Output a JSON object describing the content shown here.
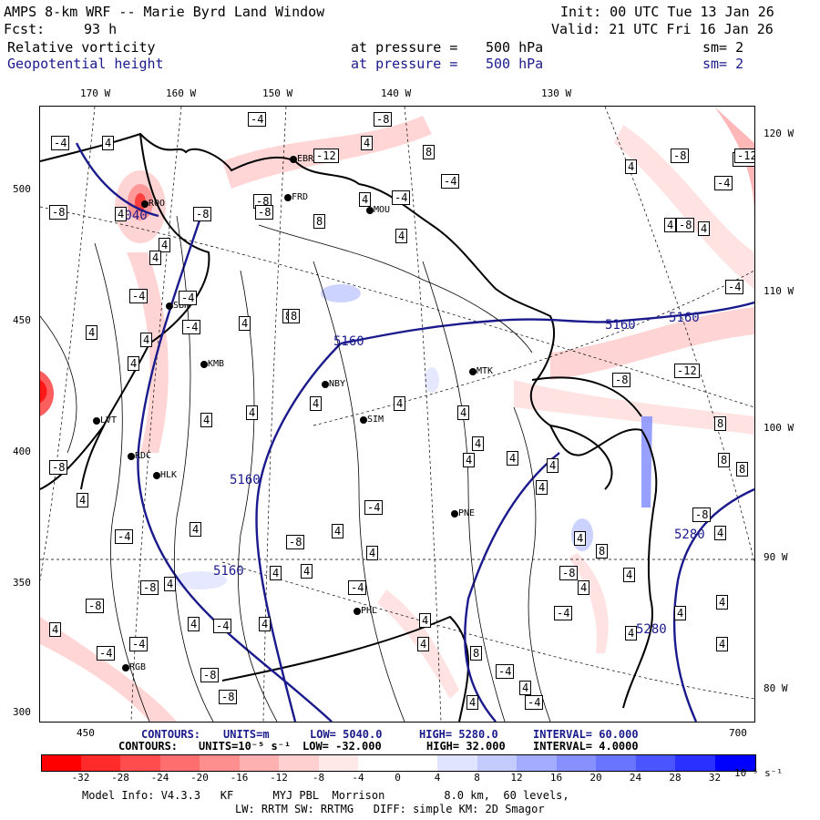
{
  "header": {
    "title": "AMPS 8-km WRF -- Marie Byrd Land Window",
    "fcst_label": "Fcst:",
    "fcst_value": "93 h",
    "init": "Init: 00 UTC Tue 13 Jan 26",
    "valid": "Valid: 21 UTC Fri 16 Jan 26",
    "field1": {
      "name": "Relative vorticity",
      "pressure_label": "at pressure =",
      "pressure": "500 hPa",
      "smooth": "sm= 2"
    },
    "field2": {
      "name": "Geopotential height",
      "pressure_label": "at pressure =",
      "pressure": "500 hPa",
      "smooth": "sm= 2"
    }
  },
  "map": {
    "top_longitudes": [
      "170 W",
      "160 W",
      "150 W",
      "140 W",
      "130 W"
    ],
    "right_longitudes": [
      "120 W",
      "110 W",
      "100 W",
      "90 W",
      "80 W"
    ],
    "left_ticks": [
      "500",
      "450",
      "400",
      "350",
      "300"
    ],
    "bottom_ticks": [
      "450",
      "700"
    ],
    "height_labels": [
      "5040",
      "5160",
      "5160",
      "5160",
      "5160",
      "5160",
      "5280",
      "5280"
    ],
    "vorticity_labels": [
      "-4",
      "4",
      "-4",
      "-8",
      "8",
      "4",
      "-8",
      "-12",
      "4",
      "-4",
      "-8",
      "-12",
      "-8",
      "4",
      "-8",
      "4",
      "8",
      "4",
      "-4",
      "-8",
      "4",
      "4",
      "-8",
      "4",
      "-4",
      "-4",
      "8",
      "-4",
      "4",
      "4",
      "4",
      "4",
      "-12",
      "-4",
      "8",
      "-8",
      "4",
      "4",
      "4",
      "4",
      "4",
      "4",
      "4",
      "4",
      "-8",
      "-4",
      "4",
      "-8",
      "-8",
      "4",
      "4",
      "4",
      "-4",
      "4",
      "4",
      "4",
      "4",
      "8",
      "8",
      "8",
      "-8",
      "-4",
      "4",
      "4",
      "4",
      "8",
      "-4",
      "4",
      "4",
      "4",
      "4",
      "-4",
      "-4",
      "4",
      "-8",
      "4",
      "4",
      "-8",
      "4",
      "-4",
      "4",
      "-4",
      "-8",
      "4",
      "4",
      "4",
      "4",
      "4",
      "-12",
      "-4",
      "8",
      "-4",
      "-8"
    ],
    "stations": [
      "EBR",
      "FRD",
      "MOU",
      "ROO",
      "SBH",
      "KMB",
      "NBY",
      "MTK",
      "SIM",
      "LVT",
      "RDC",
      "HLK",
      "PNE",
      "PHL",
      "RGB"
    ]
  },
  "contours": {
    "line1": {
      "label": "CONTOURS:",
      "units": "UNITS=m",
      "low": "LOW= 5040.0",
      "high": "HIGH= 5280.0",
      "interval": "INTERVAL= 60.000"
    },
    "line2": {
      "label": "CONTOURS:",
      "units": "UNITS=10⁻⁵ s⁻¹",
      "low": "LOW= -32.000",
      "high": "HIGH= 32.000",
      "interval": "INTERVAL= 4.0000"
    }
  },
  "colorbar": {
    "labels": [
      "-32",
      "-28",
      "-24",
      "-20",
      "-16",
      "-12",
      "-8",
      "-4",
      "0",
      "4",
      "8",
      "12",
      "16",
      "20",
      "24",
      "28",
      "32"
    ],
    "unit": "10⁻⁵ s⁻¹",
    "colors": [
      "#ff0000",
      "#ff2a2a",
      "#ff4d4d",
      "#ff6e6e",
      "#ff8f8f",
      "#ffb0b0",
      "#ffd0d0",
      "#ffe8e8",
      "#ffffff",
      "#ffffff",
      "#e0e4ff",
      "#c4cbff",
      "#a3acff",
      "#8690ff",
      "#6a75ff",
      "#4a54ff",
      "#2a30ff",
      "#0000ff"
    ]
  },
  "footer": {
    "line1": "Model Info: V4.3.3   KF      MYJ PBL  Morrison         8.0 km,  60 levels,",
    "line2": "LW: RRTM SW: RRTMG   DIFF: simple KM: 2D Smagor"
  }
}
